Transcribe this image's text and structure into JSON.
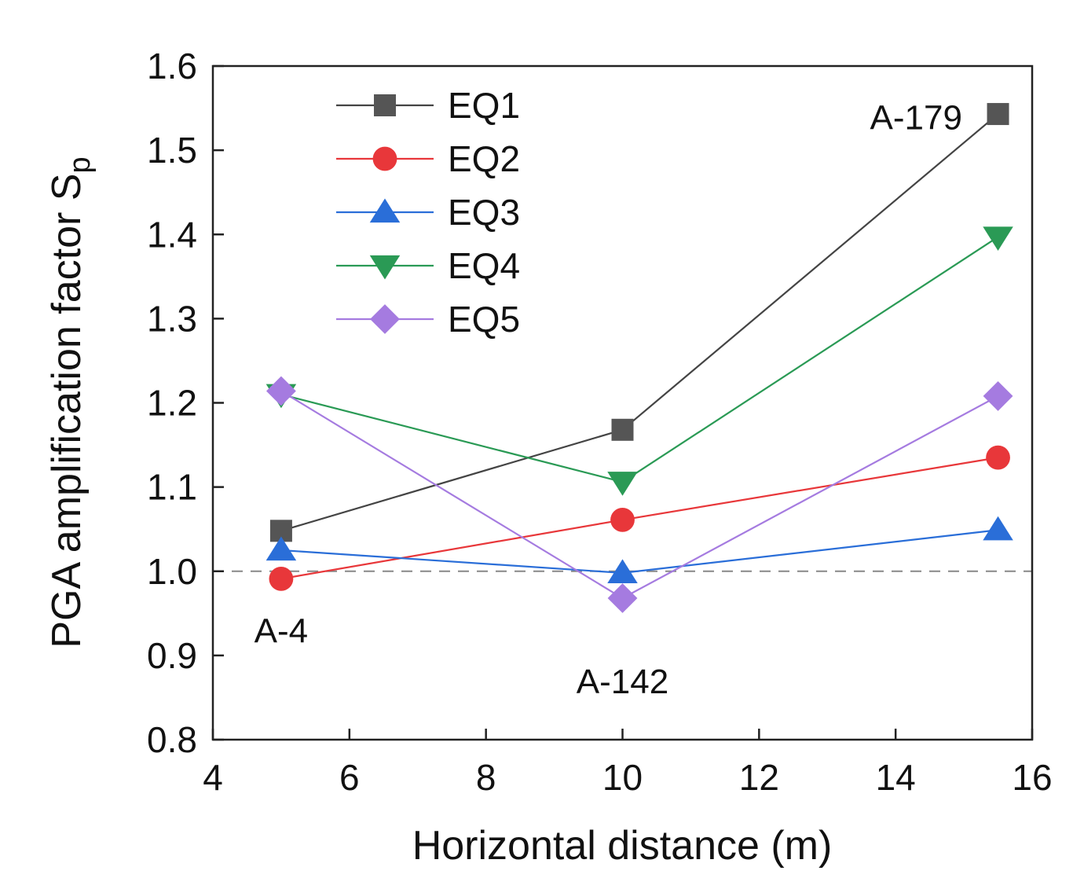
{
  "chart_data": {
    "type": "line",
    "xlabel": "Horizontal distance (m)",
    "ylabel": "PGA amplification factor S",
    "ylabel_subscript": "p",
    "xlim": [
      4,
      16
    ],
    "ylim": [
      0.8,
      1.6
    ],
    "xticks": [
      4,
      6,
      8,
      10,
      12,
      14,
      16
    ],
    "yticks": [
      0.8,
      0.9,
      1.0,
      1.1,
      1.2,
      1.3,
      1.4,
      1.5,
      1.6
    ],
    "x": [
      5,
      10,
      15.5
    ],
    "reference_line": {
      "y": 1.0,
      "style": "dashed"
    },
    "annotations": [
      {
        "text": "A-4",
        "x": 5,
        "y": 0.93
      },
      {
        "text": "A-142",
        "x": 10,
        "y": 0.87
      },
      {
        "text": "A-179",
        "x": 14.3,
        "y": 1.54
      }
    ],
    "legend_position": "top-left",
    "series": [
      {
        "name": "EQ1",
        "color": "#555555",
        "line_color": "#444444",
        "marker": "square",
        "values": [
          1.048,
          1.168,
          1.543
        ]
      },
      {
        "name": "EQ2",
        "color": "#e8373a",
        "line_color": "#e8373a",
        "marker": "circle",
        "values": [
          0.991,
          1.061,
          1.135
        ]
      },
      {
        "name": "EQ3",
        "color": "#2a6ed8",
        "line_color": "#2a6ed8",
        "marker": "triangle-up",
        "values": [
          1.025,
          0.998,
          1.049
        ]
      },
      {
        "name": "EQ4",
        "color": "#2a9a55",
        "line_color": "#2a9a55",
        "marker": "triangle-down",
        "values": [
          1.21,
          1.106,
          1.397
        ]
      },
      {
        "name": "EQ5",
        "color": "#a57be0",
        "line_color": "#a57be0",
        "marker": "diamond",
        "values": [
          1.214,
          0.968,
          1.208
        ]
      }
    ]
  }
}
